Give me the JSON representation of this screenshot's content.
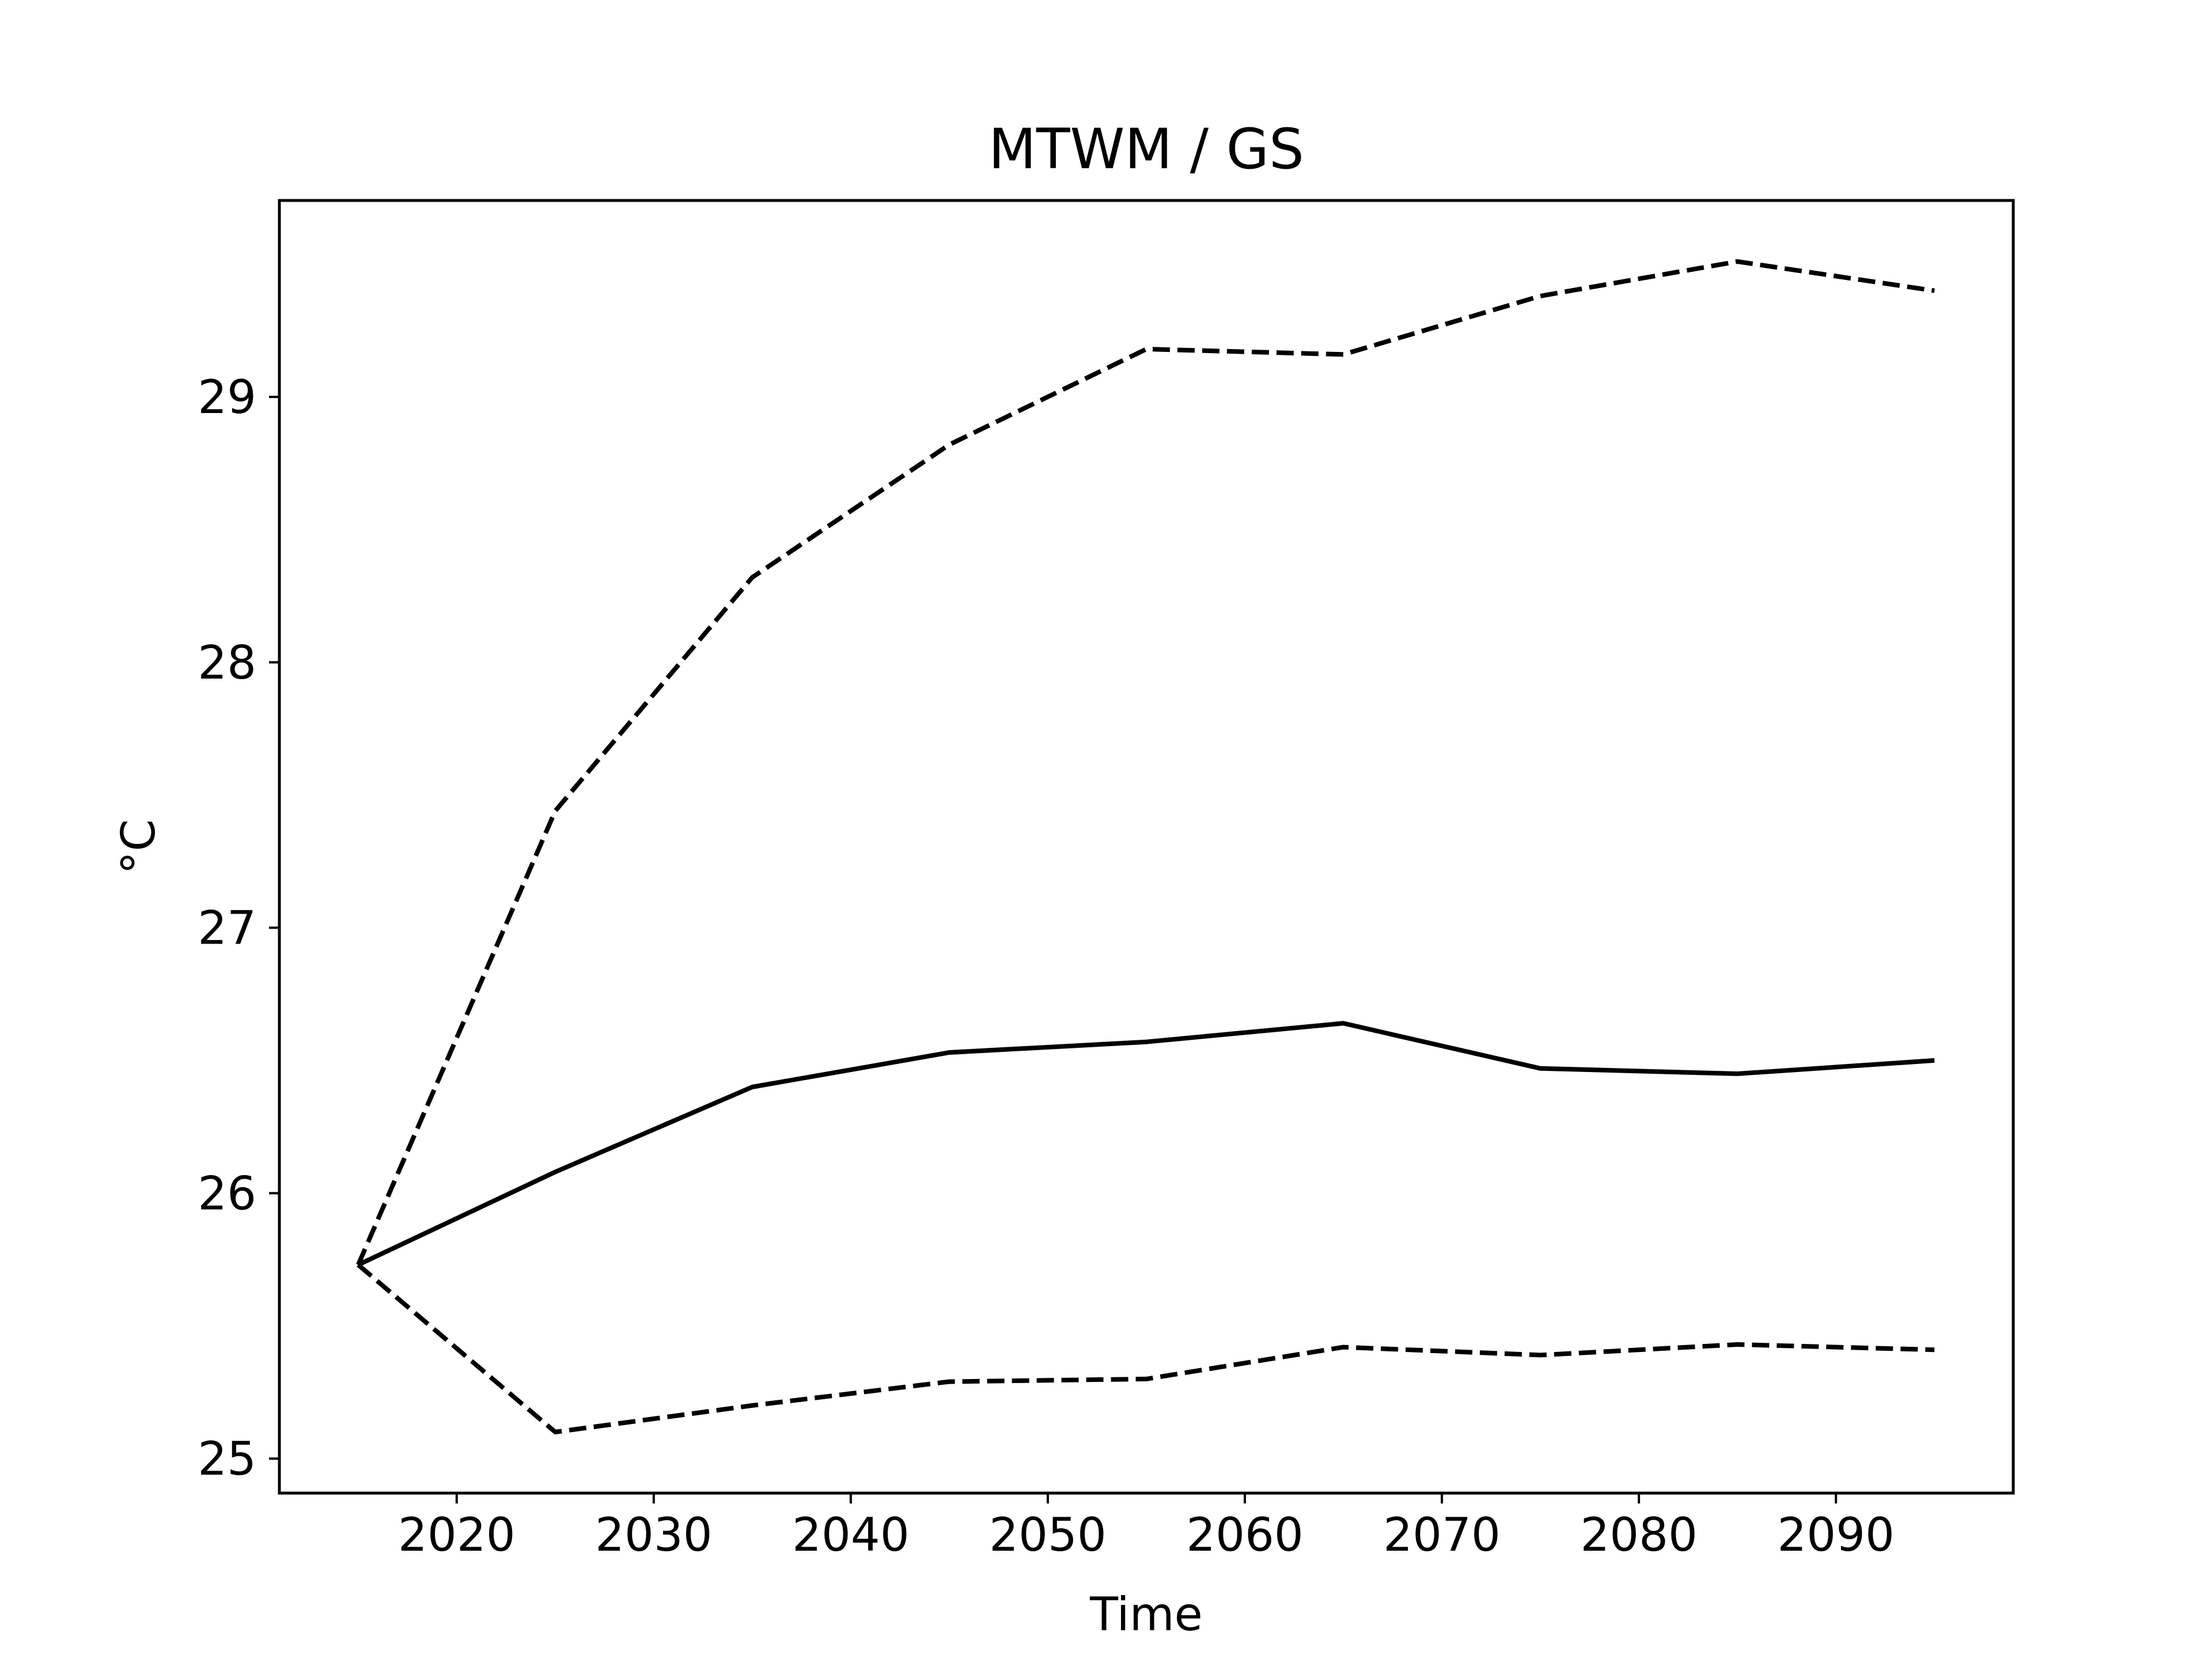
{
  "chart_data": {
    "type": "line",
    "title": "MTWM / GS",
    "xlabel": "Time",
    "ylabel": "°C",
    "xlim": [
      2011,
      2099
    ],
    "ylim": [
      24.87,
      29.74
    ],
    "xticks": [
      2020,
      2030,
      2040,
      2050,
      2060,
      2070,
      2080,
      2090
    ],
    "yticks": [
      25,
      26,
      27,
      28,
      29
    ],
    "x": [
      2015,
      2025,
      2035,
      2045,
      2055,
      2065,
      2075,
      2085,
      2095
    ],
    "grid": false,
    "series": [
      {
        "style": "solid",
        "color": "#000000",
        "values": [
          25.73,
          26.08,
          26.4,
          26.53,
          26.57,
          26.64,
          26.47,
          26.45,
          26.5
        ]
      },
      {
        "style": "dashed",
        "color": "#000000",
        "values": [
          25.73,
          27.44,
          28.32,
          28.82,
          29.18,
          29.16,
          29.38,
          29.51,
          29.4
        ]
      },
      {
        "style": "dashed",
        "color": "#000000",
        "values": [
          25.73,
          25.1,
          25.2,
          25.29,
          25.3,
          25.42,
          25.39,
          25.43,
          25.41
        ]
      }
    ]
  }
}
